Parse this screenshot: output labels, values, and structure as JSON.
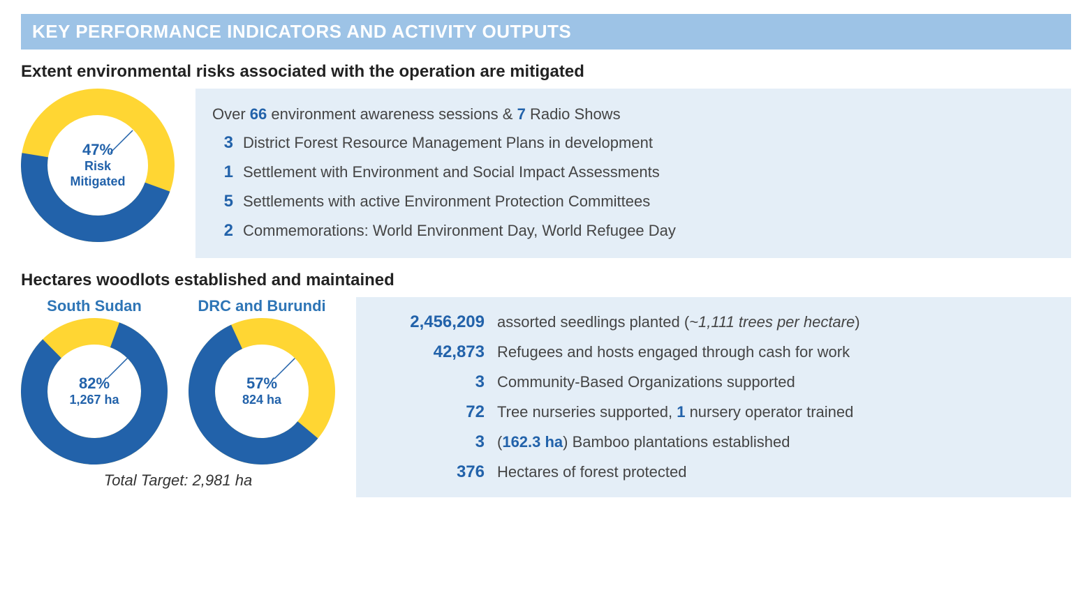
{
  "header": {
    "title": "KEY PERFORMANCE INDICATORS AND ACTIVITY OUTPUTS",
    "bar_color": "#9dc3e6",
    "text_color": "#ffffff"
  },
  "colors": {
    "donut_primary": "#2262aa",
    "donut_secondary": "#ffd633",
    "donut_hole": "#ffffff",
    "box_bg": "#e4eef7",
    "accent_text": "#2262aa",
    "body_text": "#444444"
  },
  "section1": {
    "heading": "Extent environmental risks associated with the operation are mitigated",
    "donut": {
      "percent": 47,
      "pct_label": "47%",
      "sub_label": "Risk Mitigated",
      "size": 220,
      "thickness": 38,
      "rotation_start": 20
    },
    "intro": {
      "pre": "Over ",
      "n1": "66",
      "mid": " environment awareness sessions & ",
      "n2": "7",
      "post": " Radio Shows"
    },
    "items": [
      {
        "num": "3",
        "text": "District Forest Resource Management Plans in development"
      },
      {
        "num": "1",
        "text": "Settlement with Environment and Social Impact Assessments"
      },
      {
        "num": "5",
        "text": "Settlements with active Environment Protection Committees"
      },
      {
        "num": "2",
        "text": "Commemorations:  World Environment Day, World Refugee Day"
      }
    ]
  },
  "section2": {
    "heading": "Hectares woodlots established and maintained",
    "donuts": [
      {
        "title": "South Sudan",
        "percent": 82,
        "pct_label": "82%",
        "sub_label": "1,267 ha",
        "size": 210,
        "thickness": 38,
        "rotation_start": -70
      },
      {
        "title": "DRC and Burundi",
        "percent": 57,
        "pct_label": "57%",
        "sub_label": "824 ha",
        "size": 210,
        "thickness": 38,
        "rotation_start": 40
      }
    ],
    "total_target": "Total Target: 2,981 ha",
    "stats": [
      {
        "num": "2,456,209",
        "text_pre": "assorted seedlings planted (",
        "italic": "~1,111 trees per hectare",
        "text_post": ")"
      },
      {
        "num": "42,873",
        "text": "Refugees and hosts engaged through cash for work"
      },
      {
        "num": "3",
        "text": "Community-Based Organizations supported"
      },
      {
        "num": "72",
        "text_pre": "Tree nurseries supported, ",
        "inline_num": "1",
        "text_post": " nursery operator trained"
      },
      {
        "num": "3",
        "paren_num": "162.3 ha",
        "text": "Bamboo plantations established"
      },
      {
        "num": "376",
        "text": "Hectares of forest protected"
      }
    ]
  }
}
